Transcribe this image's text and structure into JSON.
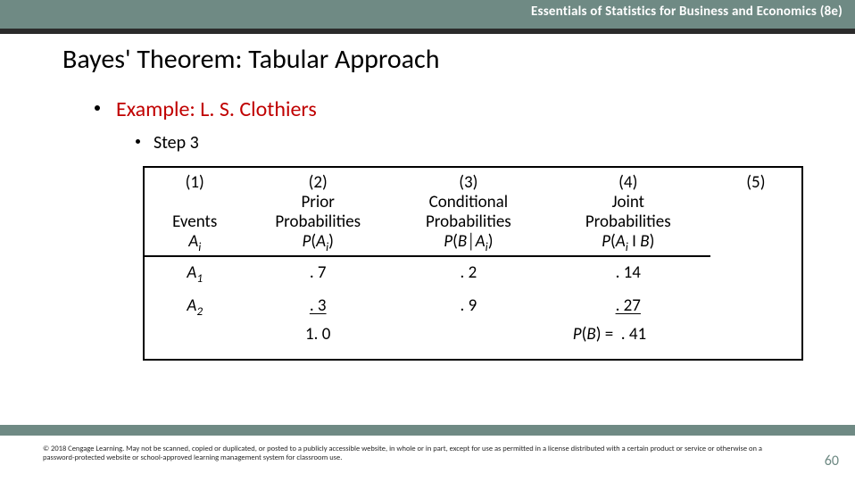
{
  "banner": {
    "text": "Essentials of Statistics for Business and Economics (8e)"
  },
  "title": "Bayes' Theorem:  Tabular Approach",
  "example": "Example:  L. S. Clothiers",
  "step": "Step 3",
  "table": {
    "headers": {
      "c1": {
        "num": "(1)",
        "l1": "",
        "l2": "Events"
      },
      "c2": {
        "num": "(2)",
        "l1": "Prior",
        "l2": "Probabilities"
      },
      "c3": {
        "num": "(3)",
        "l1": "Conditional",
        "l2": "Probabilities"
      },
      "c4": {
        "num": "(4)",
        "l1": "Joint",
        "l2": "Probabilities"
      },
      "c5": {
        "num": "(5)"
      }
    },
    "rows": [
      {
        "event": "A",
        "sub": "1",
        "prior": ". 7",
        "cond": ". 2",
        "joint": ". 14"
      },
      {
        "event": "A",
        "sub": "2",
        "prior": ". 3",
        "cond": ". 9",
        "joint": ". 27"
      }
    ],
    "sums": {
      "prior": "1. 0",
      "pb_label": "P(B) =  . 41"
    }
  },
  "copyright": "© 2018 Cengage Learning.  May not be scanned, copied or duplicated, or posted to a publicly accessible website, in whole or in part, except for use as permitted in a license distributed with a certain product or service or otherwise on a password-protected website or school-approved learning management system for classroom use.",
  "pagenum": "60"
}
